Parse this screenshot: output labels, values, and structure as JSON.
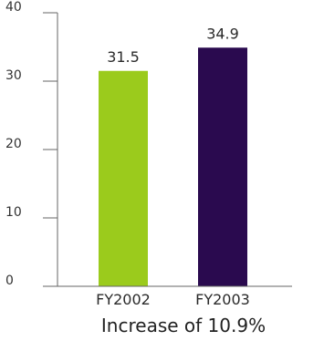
{
  "chart_data": {
    "type": "bar",
    "categories": [
      "FY2002",
      "FY2003"
    ],
    "values": [
      31.5,
      34.9
    ],
    "value_labels": [
      "31.5",
      "34.9"
    ],
    "colors": [
      "#9bcb1c",
      "#2a0a4f"
    ],
    "ylim": [
      0,
      40
    ],
    "yticks": [
      0,
      10,
      20,
      30,
      40
    ],
    "title": "",
    "xlabel": "Increase of 10.9%",
    "ylabel": "",
    "grid": false,
    "legend": "none"
  }
}
